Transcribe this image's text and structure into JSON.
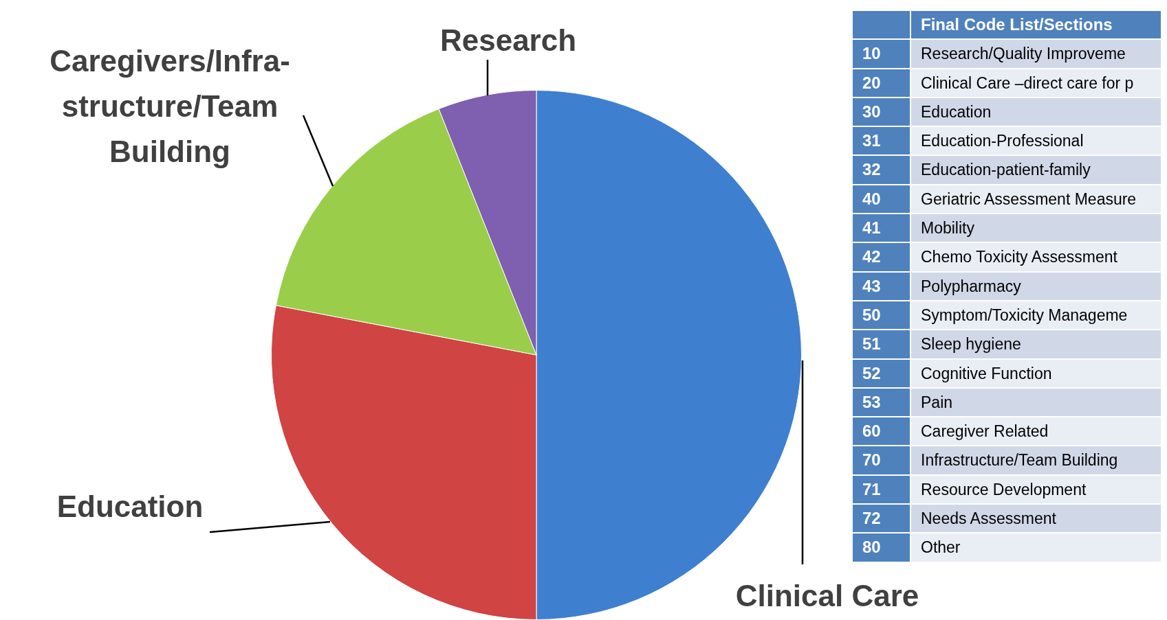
{
  "chart_data": [
    {
      "type": "pie",
      "categories": [
        "Clinical Care",
        "Education",
        "Caregivers/Infra-structure/Team Building",
        "Research"
      ],
      "values": [
        50,
        28,
        16,
        6
      ],
      "colors": [
        "#3f7fcf",
        "#d04444",
        "#9acd4a",
        "#7f5fb0"
      ],
      "data_labels": false,
      "legend": false
    },
    {
      "type": "other",
      "title": "Final Code List/Sections",
      "categories": [
        "10",
        "20",
        "30",
        "31",
        "32",
        "40",
        "41",
        "42",
        "43",
        "50",
        "51",
        "52",
        "53",
        "60",
        "70",
        "71",
        "72",
        "80"
      ],
      "annotations": [
        "Research/Quality Improveme",
        "Clinical Care –direct care for p",
        "Education",
        "Education-Professional",
        "Education-patient-family",
        "Geriatric Assessment Measure",
        "Mobility",
        "Chemo Toxicity  Assessment",
        "Polypharmacy",
        "Symptom/Toxicity Manageme",
        "Sleep hygiene",
        "Cognitive Function",
        "Pain",
        "Caregiver Related",
        "Infrastructure/Team Building",
        "Resource Development",
        "Needs Assessment",
        "Other"
      ]
    }
  ]
}
